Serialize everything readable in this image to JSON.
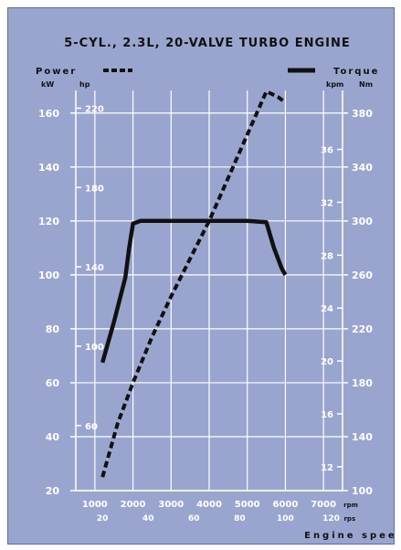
{
  "chart_data": {
    "type": "line",
    "title": "5-CYL., 2.3L, 20-VALVE TURBO ENGINE",
    "legend": {
      "power_label": "Power",
      "torque_label": "Torque",
      "placement": "top"
    },
    "left_axis": {
      "unit_kw": "kW",
      "unit_hp": "hp",
      "ylim_kw": [
        20,
        165
      ],
      "kw_ticks": [
        "20",
        "40",
        "60",
        "80",
        "100",
        "120",
        "140",
        "160"
      ],
      "hp_ticks": [
        {
          "value": 60,
          "label": "60"
        },
        {
          "value": 100,
          "label": "100"
        },
        {
          "value": 140,
          "label": "140"
        },
        {
          "value": 180,
          "label": "180"
        },
        {
          "value": 220,
          "label": "220"
        }
      ]
    },
    "right_axis": {
      "unit_kpm": "kpm",
      "unit_nm": "Nm",
      "nm_ticks": [
        {
          "value": 100,
          "label": "100"
        },
        {
          "value": 140,
          "label": "140"
        },
        {
          "value": 180,
          "label": "180"
        },
        {
          "value": 220,
          "label": "220"
        },
        {
          "value": 260,
          "label": "260"
        },
        {
          "value": 300,
          "label": "300"
        },
        {
          "value": 340,
          "label": "340"
        },
        {
          "value": 380,
          "label": "380"
        }
      ],
      "kpm_ticks": [
        {
          "value": 12,
          "label": "12"
        },
        {
          "value": 16,
          "label": "16"
        },
        {
          "value": 20,
          "label": "20"
        },
        {
          "value": 24,
          "label": "24"
        },
        {
          "value": 28,
          "label": "28"
        },
        {
          "value": 32,
          "label": "32"
        },
        {
          "value": 36,
          "label": "36"
        }
      ]
    },
    "x_axis": {
      "xlim": [
        500,
        7500
      ],
      "rpm_ticks": [
        {
          "value": 1000,
          "label": "1000"
        },
        {
          "value": 2000,
          "label": "2000"
        },
        {
          "value": 3000,
          "label": "3000"
        },
        {
          "value": 4000,
          "label": "4000"
        },
        {
          "value": 5000,
          "label": "5000"
        },
        {
          "value": 6000,
          "label": "6000"
        },
        {
          "value": 7000,
          "label": "7000"
        }
      ],
      "rpm_unit": "rpm",
      "rps_ticks": [
        {
          "value": 20,
          "label": "20"
        },
        {
          "value": 40,
          "label": "40"
        },
        {
          "value": 60,
          "label": "60"
        },
        {
          "value": 80,
          "label": "80"
        },
        {
          "value": 100,
          "label": "100"
        },
        {
          "value": 120,
          "label": "120"
        }
      ],
      "rps_unit": "rps",
      "xlabel": "Engine speed"
    },
    "grid": true,
    "series": [
      {
        "name": "Power",
        "unit": "kW",
        "style": "dashed",
        "color": "#111111",
        "x": [
          1200,
          1600,
          2000,
          2500,
          3000,
          3500,
          4000,
          4500,
          5000,
          5500,
          5800,
          6000
        ],
        "y": [
          25,
          45,
          60,
          77,
          92,
          106,
          120,
          136,
          152,
          168,
          166,
          164
        ]
      },
      {
        "name": "Torque",
        "unit": "Nm",
        "style": "solid",
        "color": "#111111",
        "x": [
          1200,
          1500,
          1800,
          1900,
          2000,
          2200,
          3000,
          4000,
          5000,
          5500,
          5700,
          5900,
          6000
        ],
        "y": [
          195,
          225,
          258,
          280,
          298,
          300,
          300,
          300,
          300,
          299,
          280,
          265,
          260
        ]
      }
    ]
  }
}
